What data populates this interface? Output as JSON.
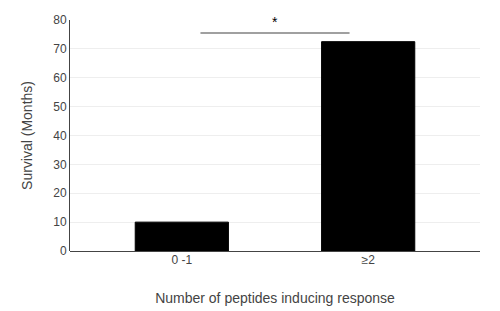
{
  "chart_data": {
    "type": "bar",
    "categories": [
      "0 -1",
      "≥2"
    ],
    "values": [
      10,
      72.5
    ],
    "color": "#000000",
    "xlabel": "Number of peptides inducing response",
    "ylabel": "Survival (Months)",
    "ylim": [
      0,
      80
    ],
    "yticks": [
      0,
      10,
      20,
      30,
      40,
      50,
      60,
      70,
      80
    ],
    "grid": true,
    "annotations": [
      {
        "text": "*",
        "y": 75.5
      }
    ]
  }
}
